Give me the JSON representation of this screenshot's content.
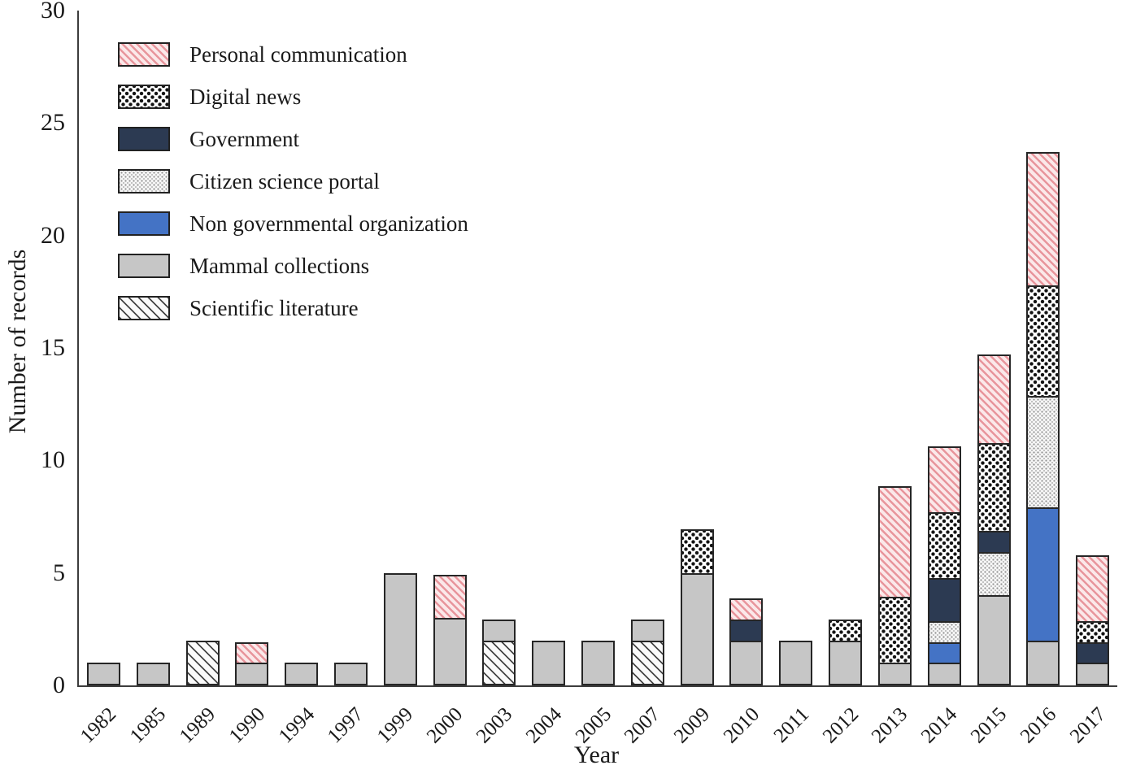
{
  "chart_data": {
    "type": "bar",
    "stacked": true,
    "title": "",
    "xlabel": "Year",
    "ylabel": "Number of  records",
    "ylim": [
      0,
      30
    ],
    "yticks": [
      0,
      5,
      10,
      15,
      20,
      25,
      30
    ],
    "grid": false,
    "legend_position": "top-left-inside",
    "categories": [
      "1982",
      "1985",
      "1989",
      "1990",
      "1994",
      "1997",
      "1999",
      "2000",
      "2003",
      "2004",
      "2005",
      "2007",
      "2009",
      "2010",
      "2011",
      "2012",
      "2013",
      "2014",
      "2015",
      "2016",
      "2017"
    ],
    "series": [
      {
        "key": "scientific_literature",
        "name": "Scientific literature",
        "pattern": "diagonal-hatch-gray",
        "css_class": "pat-scientific",
        "color": "",
        "values": [
          0,
          0,
          2,
          0,
          0,
          0,
          0,
          0,
          2,
          0,
          0,
          2,
          0,
          0,
          0,
          0,
          0,
          0,
          0,
          0,
          0
        ]
      },
      {
        "key": "mammal_collections",
        "name": "Mammal collections",
        "pattern": "solid",
        "css_class": "pat-solid",
        "color": "#c6c6c6",
        "values": [
          1,
          1,
          0,
          1,
          1,
          1,
          5,
          3,
          1,
          2,
          2,
          1,
          5,
          2,
          2,
          2,
          1,
          1,
          4,
          2,
          1
        ]
      },
      {
        "key": "ngo",
        "name": "Non governmental organization",
        "pattern": "solid",
        "css_class": "pat-solid",
        "color": "#4473c5",
        "values": [
          0,
          0,
          0,
          0,
          0,
          0,
          0,
          0,
          0,
          0,
          0,
          0,
          0,
          0,
          0,
          0,
          0,
          1,
          0,
          6,
          0
        ]
      },
      {
        "key": "citizen_science",
        "name": "Citizen science portal",
        "pattern": "fine-dots-gray",
        "css_class": "pat-citizen",
        "color": "",
        "values": [
          0,
          0,
          0,
          0,
          0,
          0,
          0,
          0,
          0,
          0,
          0,
          0,
          0,
          0,
          0,
          0,
          0,
          1,
          2,
          5,
          0
        ]
      },
      {
        "key": "government",
        "name": "Government",
        "pattern": "solid",
        "css_class": "pat-solid",
        "color": "#2c3a52",
        "values": [
          0,
          0,
          0,
          0,
          0,
          0,
          0,
          0,
          0,
          0,
          0,
          0,
          0,
          1,
          0,
          0,
          0,
          2,
          1,
          0,
          1
        ]
      },
      {
        "key": "digital_news",
        "name": "Digital news",
        "pattern": "coarse-dots-black",
        "css_class": "pat-digital",
        "color": "",
        "values": [
          0,
          0,
          0,
          0,
          0,
          0,
          0,
          0,
          0,
          0,
          0,
          0,
          2,
          0,
          0,
          1,
          3,
          3,
          4,
          5,
          1
        ]
      },
      {
        "key": "personal_communication",
        "name": "Personal communication",
        "pattern": "diagonal-hatch-pink",
        "css_class": "pat-personal",
        "color": "",
        "values": [
          0,
          0,
          0,
          1,
          0,
          0,
          0,
          2,
          0,
          0,
          0,
          0,
          0,
          1,
          0,
          0,
          5,
          3,
          4,
          6,
          3
        ]
      }
    ],
    "legend_order": [
      "personal_communication",
      "digital_news",
      "government",
      "citizen_science",
      "ngo",
      "mammal_collections",
      "scientific_literature"
    ],
    "bar_totals": {
      "1982": 1,
      "1985": 1,
      "1989": 2,
      "1990": 2,
      "1994": 1,
      "1997": 1,
      "1999": 5,
      "2000": 5,
      "2003": 3,
      "2004": 2,
      "2005": 2,
      "2007": 3,
      "2009": 7,
      "2010": 4,
      "2011": 2,
      "2012": 3,
      "2013": 9,
      "2014": 11,
      "2015": 15,
      "2016": 24,
      "2017": 6
    }
  },
  "colors": {
    "axis": "#3c3c3c",
    "segment_border": "#262626",
    "ngo_blue": "#4473c5",
    "government_navy": "#2c3a52",
    "mammal_gray": "#c6c6c6",
    "personal_pink_stripe": "#e8959c",
    "background": "#ffffff"
  }
}
